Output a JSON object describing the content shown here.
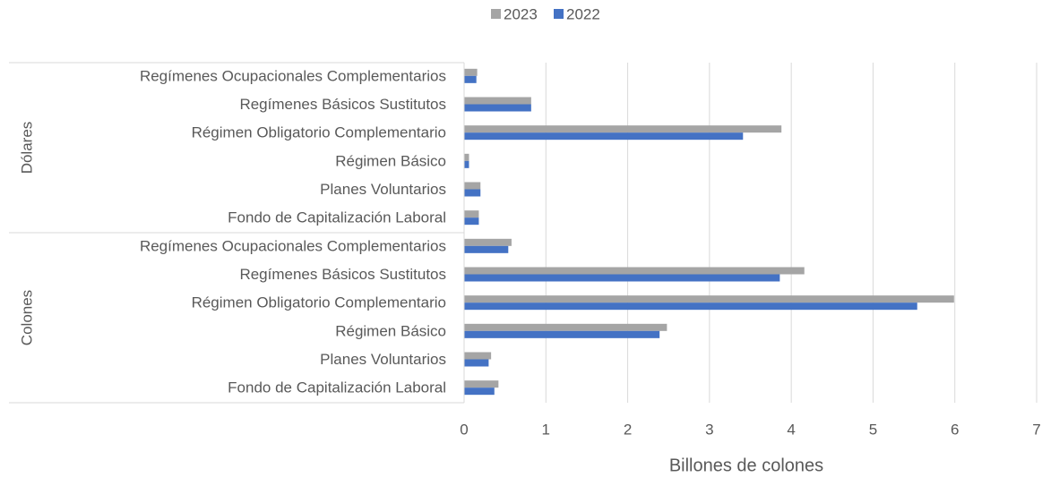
{
  "chart_data": {
    "type": "bar",
    "orientation": "horizontal",
    "x_label": "Billones de colones",
    "groups": [
      {
        "label": "Dólares",
        "categories": [
          "Regímenes Ocupacionales Complementarios",
          "Regímenes Básicos Sustitutos",
          "Régimen Obligatorio Complementario",
          "Régimen Básico",
          "Planes Voluntarios",
          "Fondo de Capitalización Laboral"
        ]
      },
      {
        "label": "Colones",
        "categories": [
          "Regímenes Ocupacionales Complementarios",
          "Regímenes Básicos Sustitutos",
          "Régimen Obligatorio Complementario",
          "Régimen Básico",
          "Planes Voluntarios",
          "Fondo de Capitalización Laboral"
        ]
      }
    ],
    "series": [
      {
        "name": "2023",
        "color": "#a5a5a5",
        "values": [
          0.16,
          0.82,
          3.88,
          0.06,
          0.2,
          0.18,
          0.58,
          4.16,
          5.99,
          2.48,
          0.33,
          0.42
        ]
      },
      {
        "name": "2022",
        "color": "#4472c4",
        "values": [
          0.15,
          0.82,
          3.41,
          0.06,
          0.2,
          0.18,
          0.54,
          3.86,
          5.54,
          2.39,
          0.3,
          0.37
        ]
      }
    ],
    "xlim": [
      0,
      7
    ],
    "xticks": [
      0,
      1,
      2,
      3,
      4,
      5,
      6,
      7
    ],
    "grid": true,
    "legend": "top"
  }
}
